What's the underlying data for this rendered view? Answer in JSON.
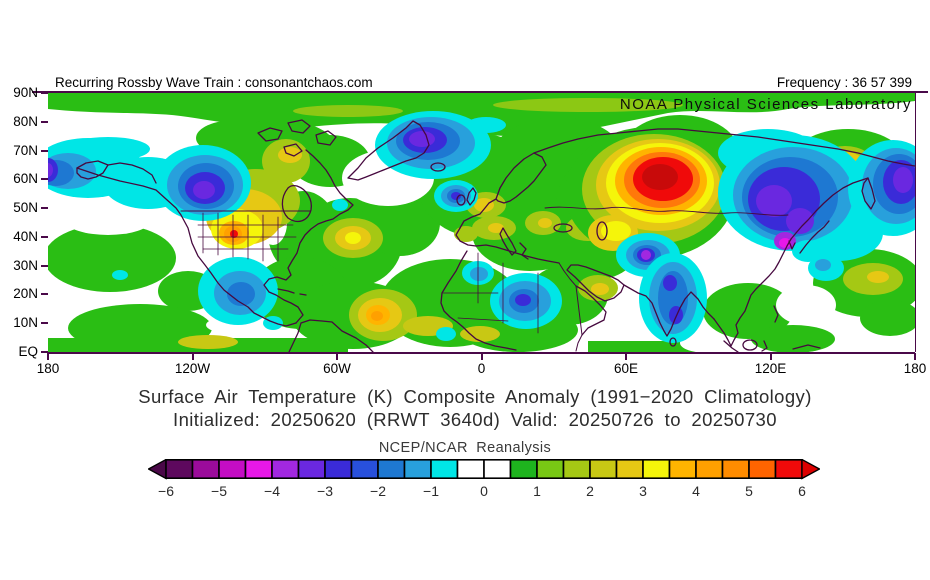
{
  "header": {
    "left_title": "Recurring Rossby Wave Train : consonantchaos.com",
    "frequency_label": "Frequency : 36 57 399",
    "organization": "NOAA Physical Sciences Laboratory"
  },
  "titles": {
    "line1": "Surface Air Temperature (K) Composite Anomaly (1991−2020 Climatology)",
    "line2": "Initialized: 20250620 (RRWT 3640d) Valid: 20250726 to 20250730",
    "source": "NCEP/NCAR Reanalysis"
  },
  "axes": {
    "lat_ticks": [
      "90N",
      "80N",
      "70N",
      "60N",
      "50N",
      "40N",
      "30N",
      "20N",
      "10N",
      "EQ"
    ],
    "lon_ticks": [
      "180",
      "120W",
      "60W",
      "0",
      "60E",
      "120E",
      "180"
    ]
  },
  "colorbar": {
    "units": "K",
    "tick_labels": [
      "−6",
      "−5",
      "−4",
      "−3",
      "−2",
      "−1",
      "0",
      "1",
      "2",
      "3",
      "4",
      "5",
      "6"
    ],
    "cell_values": [
      -6,
      -5.5,
      -5,
      -4.5,
      -4,
      -3.5,
      -3,
      -2.5,
      -2,
      -1.5,
      -1,
      -0.5,
      0,
      0.5,
      1,
      1.5,
      2,
      2.5,
      3,
      3.5,
      4,
      4.5,
      5,
      5.5,
      6
    ],
    "cells": [
      "#5E095E",
      "#9B0B9B",
      "#C40DC4",
      "#E818E8",
      "#A228E0",
      "#6A28E0",
      "#3A2BD8",
      "#2850DC",
      "#1E78D2",
      "#28A0DC",
      "#00E6E6",
      "#FFFFFF",
      "#FFFFFF",
      "#1EB41E",
      "#78C814",
      "#A5C814",
      "#C8C814",
      "#E6C814",
      "#F5F50A",
      "#FFB400",
      "#FFA000",
      "#FF8C00",
      "#FF6400",
      "#F00A0A"
    ],
    "left_arrow_color": "#4A0848",
    "right_arrow_color": "#DC0000"
  },
  "map": {
    "variable": "Surface Air Temperature anomaly",
    "extent": {
      "lon_min": "180W",
      "lon_max": "180E",
      "lat_min": "EQ",
      "lat_max": "90N"
    },
    "coastline_color": "#46093F",
    "notable_anomalies": [
      {
        "region": "Arctic 80N-90N band",
        "sign": "warm",
        "peak_level": 1
      },
      {
        "region": "Western Russia / Urals",
        "sign": "warm",
        "peak_level": 6
      },
      {
        "region": "Central Siberia / Mongolia",
        "sign": "cold",
        "peak_level": -4
      },
      {
        "region": "Western U.S. Great Basin",
        "sign": "warm",
        "peak_level": 5
      },
      {
        "region": "British Columbia coast",
        "sign": "cold",
        "peak_level": -4
      },
      {
        "region": "Greenland",
        "sign": "cold",
        "peak_level": -4
      },
      {
        "region": "Bering Sea / Alaska",
        "sign": "cold",
        "peak_level": -3
      },
      {
        "region": "Northeast Siberia",
        "sign": "warm",
        "peak_level": 4
      },
      {
        "region": "Kamchatka / Bering Strait",
        "sign": "cold",
        "peak_level": -4
      },
      {
        "region": "India / Afghanistan",
        "sign": "cold",
        "peak_level": -3
      },
      {
        "region": "Libya / Egypt",
        "sign": "cold",
        "peak_level": -3
      },
      {
        "region": "Morocco / NW Africa",
        "sign": "warm",
        "peak_level": 4
      },
      {
        "region": "North Atlantic 40-50N",
        "sign": "warm",
        "peak_level": 3
      }
    ]
  }
}
